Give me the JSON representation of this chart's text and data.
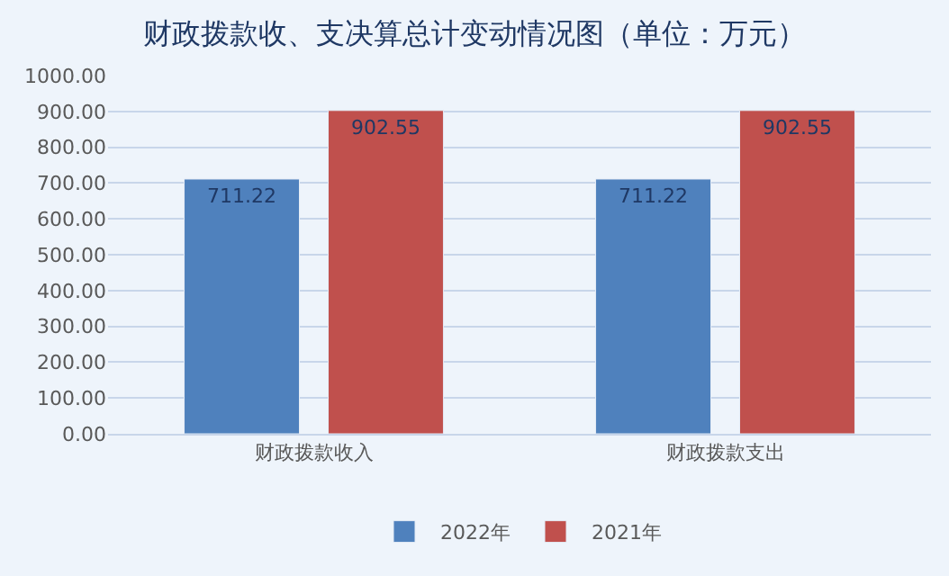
{
  "chart_data": {
    "type": "bar",
    "title": "财政拨款收、支决算总计变动情况图（单位：万元）",
    "categories": [
      "财政拨款收入",
      "财政拨款支出"
    ],
    "series": [
      {
        "name": "2022年",
        "color": "#4f81bd",
        "values": [
          711.22,
          711.22
        ]
      },
      {
        "name": "2021年",
        "color": "#c0504d",
        "values": [
          902.55,
          902.55
        ]
      }
    ],
    "ylim": [
      0,
      1000
    ],
    "yticks": [
      {
        "value": 0,
        "label": "0.00"
      },
      {
        "value": 100,
        "label": "100.00"
      },
      {
        "value": 200,
        "label": "200.00"
      },
      {
        "value": 300,
        "label": "300.00"
      },
      {
        "value": 400,
        "label": "400.00"
      },
      {
        "value": 500,
        "label": "500.00"
      },
      {
        "value": 600,
        "label": "600.00"
      },
      {
        "value": 700,
        "label": "700.00"
      },
      {
        "value": 800,
        "label": "800.00"
      },
      {
        "value": 900,
        "label": "900.00"
      },
      {
        "value": 1000,
        "label": "1000.00"
      }
    ],
    "grid": "y",
    "legend": "bottom",
    "data_labels": true
  }
}
